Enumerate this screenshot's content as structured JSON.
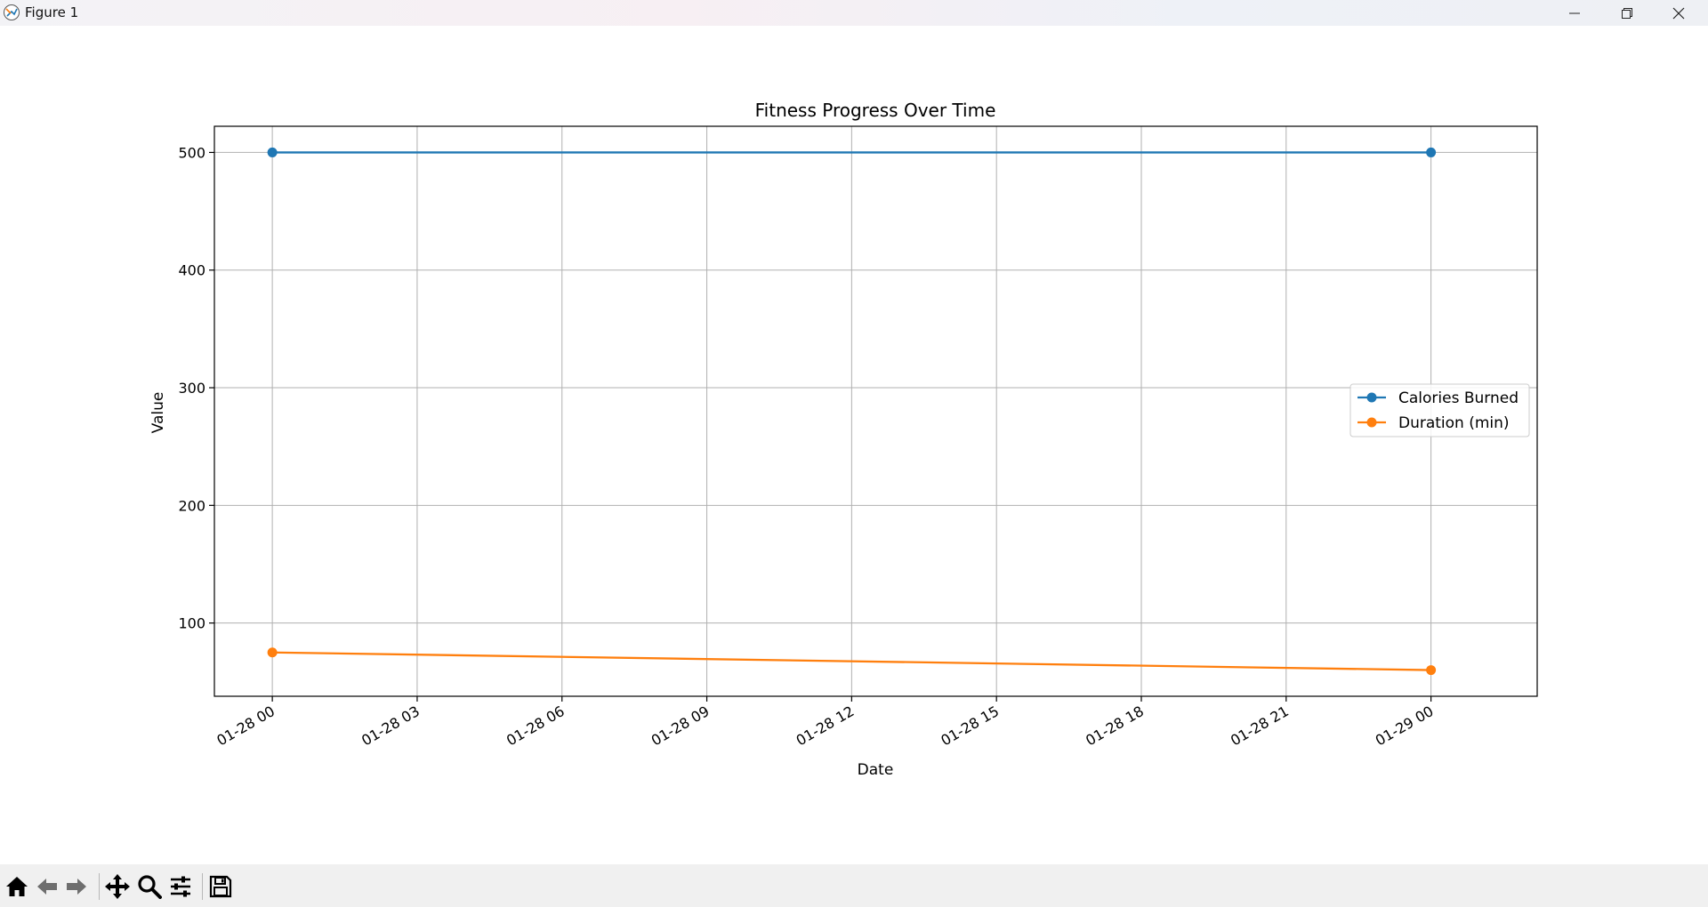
{
  "window": {
    "title": "Figure 1"
  },
  "toolbar": {
    "items": [
      "home-icon",
      "back-icon",
      "forward-icon",
      "pan-icon",
      "zoom-icon",
      "configure-icon",
      "save-icon"
    ]
  },
  "colors": {
    "series1": "#1f77b4",
    "series2": "#ff7f0e",
    "grid": "#b0b0b0"
  },
  "chart_data": {
    "type": "line",
    "title": "Fitness Progress Over Time",
    "xlabel": "Date",
    "ylabel": "Value",
    "x": [
      "2025-01-28 00:00",
      "2025-01-29 00:00"
    ],
    "x_hours": [
      0,
      24
    ],
    "xlim_hours": [
      -1.2,
      26.2
    ],
    "xticks_hours": [
      0,
      3,
      6,
      9,
      12,
      15,
      18,
      21,
      24
    ],
    "xtick_labels": [
      "01-28 00",
      "01-28 03",
      "01-28 06",
      "01-28 09",
      "01-28 12",
      "01-28 15",
      "01-28 18",
      "01-28 21",
      "01-29 00"
    ],
    "ylim": [
      37.75,
      522.25
    ],
    "yticks": [
      100,
      200,
      300,
      400,
      500
    ],
    "ytick_labels": [
      "100",
      "200",
      "300",
      "400",
      "500"
    ],
    "grid": true,
    "legend_position": "center-right",
    "series": [
      {
        "name": "Calories Burned",
        "values": [
          500,
          500
        ],
        "color": "#1f77b4"
      },
      {
        "name": "Duration (min)",
        "values": [
          75,
          60
        ],
        "color": "#ff7f0e"
      }
    ]
  }
}
